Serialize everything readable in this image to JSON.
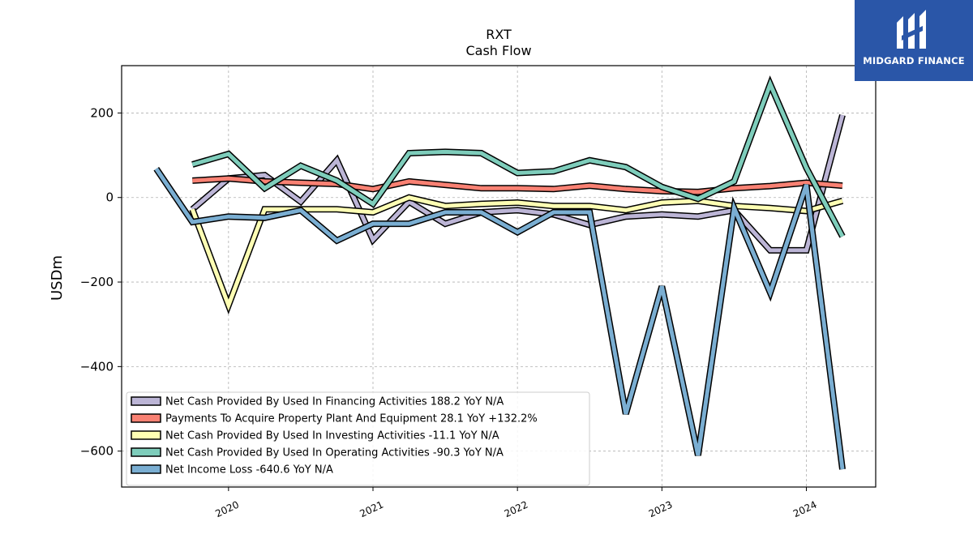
{
  "brand": {
    "name": "MIDGARD FINANCE",
    "color": "#2a56a8"
  },
  "chart_data": {
    "type": "line",
    "title": "RXT",
    "subtitle": "Cash Flow",
    "xlabel": "",
    "ylabel": "USDm",
    "x_tick_labels": [
      "2020",
      "2021",
      "2022",
      "2023",
      "2024"
    ],
    "x_tick_values": [
      2020.0,
      2021.0,
      2022.0,
      2023.0,
      2024.0
    ],
    "xlim": [
      2019.26,
      2024.48
    ],
    "y_tick_labels": [
      "200",
      "0",
      "−200",
      "−400",
      "−600"
    ],
    "y_tick_values": [
      200,
      0,
      -200,
      -400,
      -600
    ],
    "ylim": [
      -685,
      312
    ],
    "grid": true,
    "legend_position": "lower-left",
    "series": [
      {
        "name": "Net Cash Provided By Used In Financing Activities",
        "legend_label": "Net Cash Provided By Used In Financing Activities  188.2 YoY N/A",
        "color": "#bcb5d6",
        "x": [
          2019.75,
          2020.0,
          2020.25,
          2020.5,
          2020.75,
          2021.0,
          2021.25,
          2021.5,
          2021.75,
          2022.0,
          2022.25,
          2022.5,
          2022.75,
          2023.0,
          2023.25,
          2023.5,
          2023.75,
          2024.0,
          2024.25
        ],
        "y": [
          -28,
          45,
          53,
          -10,
          88,
          -100,
          -10,
          -62,
          -35,
          -30,
          -40,
          -65,
          -45,
          -40,
          -45,
          -30,
          -125,
          -125,
          195
        ]
      },
      {
        "name": "Payments To Acquire Property Plant And Equipment",
        "legend_label": "Payments To Acquire Property Plant And Equipment  28.1 YoY +132.2%",
        "color": "#f98173",
        "x": [
          2019.75,
          2020.0,
          2020.25,
          2020.5,
          2020.75,
          2021.0,
          2021.25,
          2021.5,
          2021.75,
          2022.0,
          2022.25,
          2022.5,
          2022.75,
          2023.0,
          2023.25,
          2023.5,
          2023.75,
          2024.0,
          2024.25
        ],
        "y": [
          40,
          45,
          38,
          35,
          32,
          20,
          38,
          30,
          22,
          22,
          20,
          28,
          20,
          15,
          13,
          22,
          27,
          35,
          28
        ]
      },
      {
        "name": "Net Cash Provided By Used In Investing Activities",
        "legend_label": "Net Cash Provided By Used In Investing Activities  -11.1 YoY N/A",
        "color": "#feffb4",
        "x": [
          2019.75,
          2020.0,
          2020.25,
          2020.5,
          2020.75,
          2021.0,
          2021.25,
          2021.5,
          2021.75,
          2022.0,
          2022.25,
          2022.5,
          2022.75,
          2023.0,
          2023.25,
          2023.5,
          2023.75,
          2024.0,
          2024.25
        ],
        "y": [
          -28,
          -255,
          -28,
          -28,
          -28,
          -35,
          0,
          -20,
          -15,
          -12,
          -20,
          -20,
          -30,
          -12,
          -8,
          -20,
          -25,
          -32,
          -8
        ]
      },
      {
        "name": "Net Cash Provided By Used In Operating Activities",
        "legend_label": "Net Cash Provided By Used In Operating Activities  -90.3 YoY N/A",
        "color": "#7ecdbb",
        "x": [
          2019.75,
          2020.0,
          2020.25,
          2020.5,
          2020.75,
          2021.0,
          2021.25,
          2021.5,
          2021.75,
          2022.0,
          2022.25,
          2022.5,
          2022.75,
          2023.0,
          2023.25,
          2023.5,
          2023.75,
          2024.0,
          2024.25
        ],
        "y": [
          78,
          103,
          22,
          75,
          40,
          -15,
          105,
          108,
          105,
          58,
          62,
          88,
          72,
          25,
          -3,
          38,
          268,
          70,
          -92
        ]
      },
      {
        "name": "Net Income Loss",
        "legend_label": "Net Income Loss  -640.6 YoY N/A",
        "color": "#7aaed2",
        "x": [
          2019.5,
          2019.75,
          2020.0,
          2020.25,
          2020.5,
          2020.75,
          2021.0,
          2021.25,
          2021.5,
          2021.75,
          2022.0,
          2022.25,
          2022.5,
          2022.75,
          2023.0,
          2023.25,
          2023.5,
          2023.75,
          2024.0,
          2024.25
        ],
        "y": [
          68,
          -58,
          -45,
          -48,
          -30,
          -102,
          -62,
          -62,
          -35,
          -35,
          -82,
          -35,
          -35,
          -512,
          -210,
          -610,
          -25,
          -225,
          30,
          -643
        ]
      }
    ]
  }
}
